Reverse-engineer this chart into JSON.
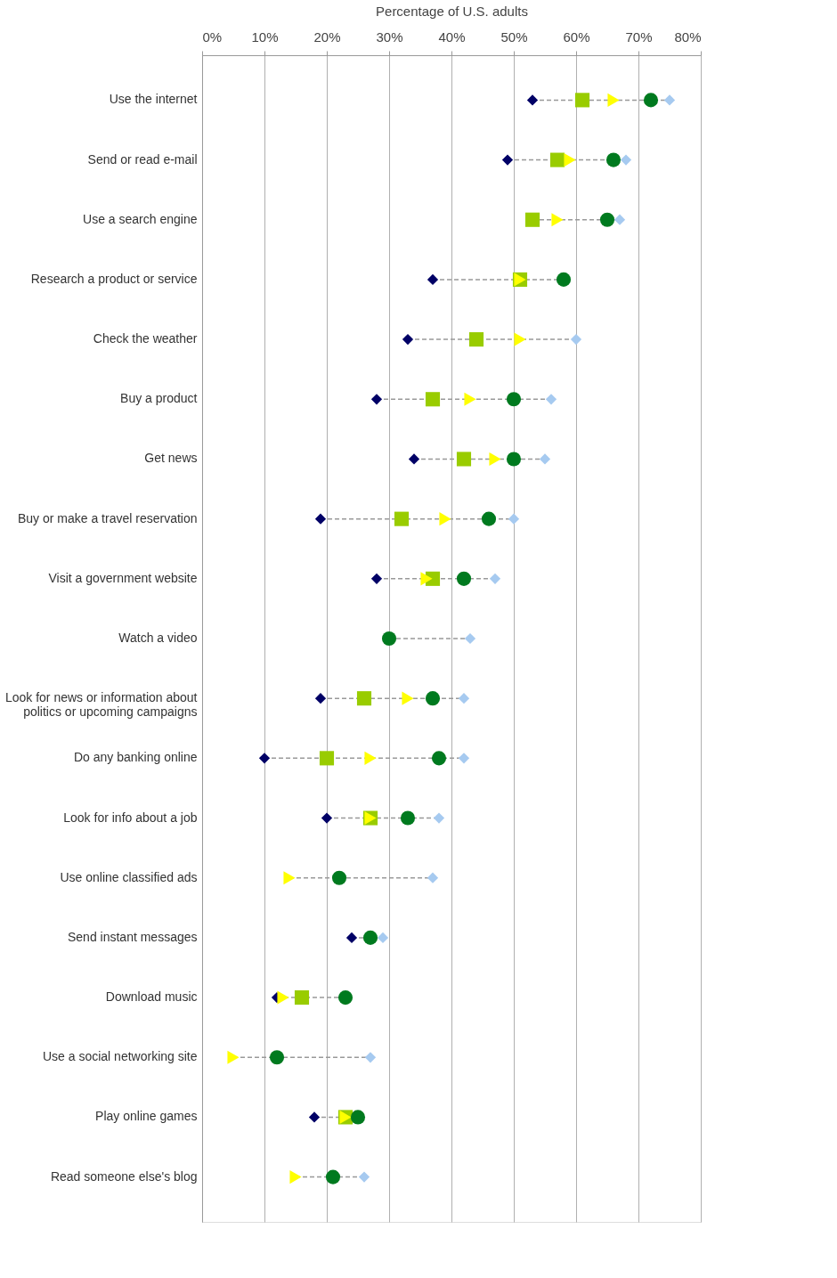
{
  "chart_data": {
    "type": "scatter",
    "orientation": "horizontal",
    "xlabel": "Percentage of U.S. adults",
    "categories": [
      "Use the internet",
      "Send or read e-mail",
      "Use a search engine",
      "Research a product or service",
      "Check the weather",
      "Buy a product",
      "Get news",
      "Buy or make a travel reservation",
      "Visit a government website",
      "Watch a video",
      "Look for news or information about\npolitics or upcoming campaigns",
      "Do any banking online",
      "Look for info about a job",
      "Use online classified ads",
      "Send instant messages",
      "Download music",
      "Use a social networking site",
      "Play online games",
      "Read someone else's blog"
    ],
    "series": [
      {
        "color": "#000066",
        "marker": "diamond",
        "values": [
          53,
          49,
          null,
          37,
          33,
          28,
          34,
          19,
          28,
          null,
          19,
          10,
          20,
          null,
          24,
          12,
          null,
          18,
          null
        ]
      },
      {
        "color": "#99cc00",
        "marker": "square",
        "values": [
          61,
          57,
          53,
          51,
          44,
          37,
          42,
          32,
          37,
          null,
          26,
          20,
          27,
          null,
          null,
          16,
          null,
          23,
          null
        ]
      },
      {
        "color": "#ffff00",
        "marker": "triangle",
        "values": [
          66,
          59,
          57,
          51,
          51,
          43,
          47,
          39,
          36,
          null,
          33,
          27,
          27,
          14,
          null,
          13,
          5,
          23,
          15
        ]
      },
      {
        "color": "#007a1f",
        "marker": "circle",
        "values": [
          72,
          66,
          65,
          58,
          null,
          50,
          50,
          46,
          42,
          30,
          37,
          38,
          33,
          22,
          27,
          23,
          12,
          25,
          21
        ]
      },
      {
        "color": "#a6caf0",
        "marker": "diamond",
        "values": [
          75,
          68,
          67,
          null,
          60,
          56,
          55,
          50,
          47,
          43,
          42,
          42,
          38,
          37,
          29,
          null,
          27,
          null,
          26
        ]
      }
    ],
    "xlim": [
      0,
      80
    ],
    "xticks": [
      {
        "value": 0,
        "label": "0%"
      },
      {
        "value": 10,
        "label": "10%"
      },
      {
        "value": 20,
        "label": "20%"
      },
      {
        "value": 30,
        "label": "30%"
      },
      {
        "value": 40,
        "label": "40%"
      },
      {
        "value": 50,
        "label": "50%"
      },
      {
        "value": 60,
        "label": "60%"
      },
      {
        "value": 70,
        "label": "70%"
      },
      {
        "value": 80,
        "label": "80%"
      }
    ],
    "grid": "x",
    "line_style": "dashed"
  }
}
